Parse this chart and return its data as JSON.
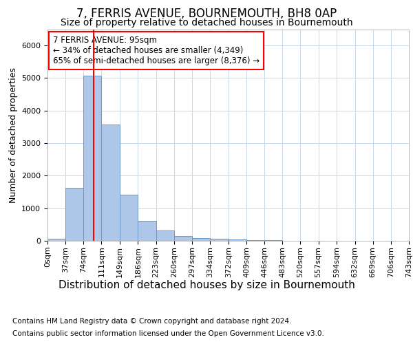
{
  "title": "7, FERRIS AVENUE, BOURNEMOUTH, BH8 0AP",
  "subtitle": "Size of property relative to detached houses in Bournemouth",
  "xlabel": "Distribution of detached houses by size in Bournemouth",
  "ylabel": "Number of detached properties",
  "bin_labels": [
    "0sqm",
    "37sqm",
    "74sqm",
    "111sqm",
    "149sqm",
    "186sqm",
    "223sqm",
    "260sqm",
    "297sqm",
    "334sqm",
    "372sqm",
    "409sqm",
    "446sqm",
    "483sqm",
    "520sqm",
    "557sqm",
    "594sqm",
    "632sqm",
    "669sqm",
    "706sqm",
    "743sqm"
  ],
  "bin_edges": [
    0,
    37,
    74,
    111,
    149,
    186,
    223,
    260,
    297,
    334,
    372,
    409,
    446,
    483,
    520,
    557,
    594,
    632,
    669,
    706,
    743
  ],
  "bar_heights": [
    70,
    1620,
    5080,
    3580,
    1420,
    620,
    310,
    140,
    90,
    55,
    40,
    30,
    18,
    10,
    8,
    5,
    4,
    3,
    2,
    2,
    1
  ],
  "bar_color": "#aec6e8",
  "bar_edge_color": "#6699cc",
  "red_line_x": 95,
  "ylim": [
    0,
    6500
  ],
  "annotation_text": "7 FERRIS AVENUE: 95sqm\n← 34% of detached houses are smaller (4,349)\n65% of semi-detached houses are larger (8,376) →",
  "footer_line1": "Contains HM Land Registry data © Crown copyright and database right 2024.",
  "footer_line2": "Contains public sector information licensed under the Open Government Licence v3.0.",
  "background_color": "#ffffff",
  "grid_color": "#c8d8ec",
  "title_fontsize": 12,
  "subtitle_fontsize": 10,
  "xlabel_fontsize": 11,
  "ylabel_fontsize": 9,
  "tick_fontsize": 8,
  "annotation_fontsize": 8.5,
  "footer_fontsize": 7.5
}
